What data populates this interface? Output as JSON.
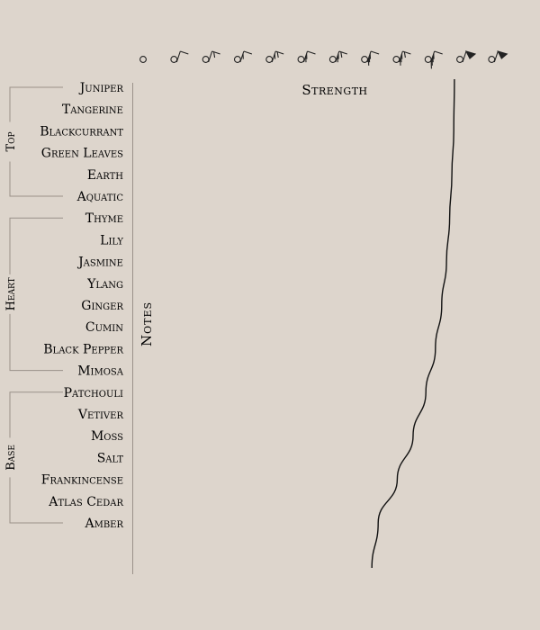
{
  "chart_data": {
    "type": "line",
    "xlabel": "Strength",
    "ylabel": "Notes",
    "strength_levels": 12,
    "groups": [
      {
        "name": "Top",
        "notes": [
          "Juniper",
          "Tangerine",
          "Blackcurrant",
          "Green Leaves",
          "Earth",
          "Aquatic"
        ]
      },
      {
        "name": "Heart",
        "notes": [
          "Thyme",
          "Lily",
          "Jasmine",
          "Ylang",
          "Ginger",
          "Cumin",
          "Black Pepper",
          "Mimosa"
        ]
      },
      {
        "name": "Base",
        "notes": [
          "Patchouli",
          "Vetiver",
          "Moss",
          "Salt",
          "Frankincense",
          "Atlas Cedar",
          "Amber"
        ]
      }
    ],
    "series": [
      {
        "x": [
          9.8,
          9.78,
          9.72,
          9.65,
          9.55,
          9.4,
          9.2,
          8.9,
          8.5,
          8.0,
          7.4,
          7.2
        ],
        "y": [
          "Juniper",
          "Blackcurrant",
          "Earth",
          "Thyme",
          "Jasmine",
          "Ginger",
          "Black Pepper",
          "Patchouli",
          "Moss",
          "Frankincense",
          "Amber",
          "Amber"
        ]
      }
    ],
    "grid": false,
    "colors": {
      "line": "#111111",
      "axis": "#9a9189",
      "text": "#222222"
    }
  }
}
